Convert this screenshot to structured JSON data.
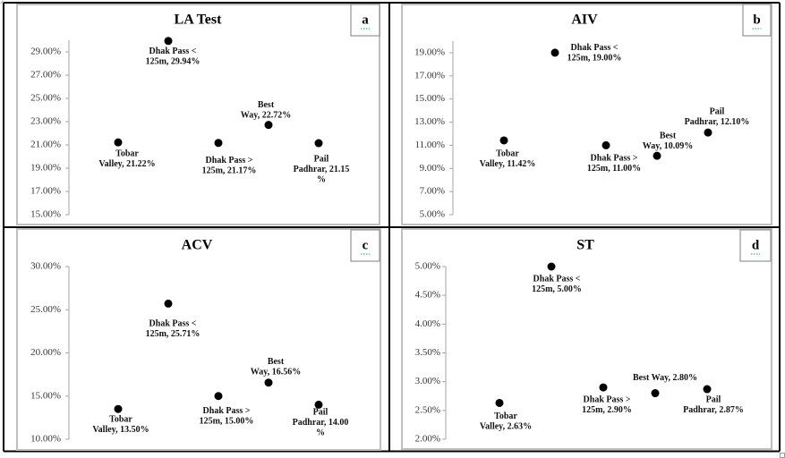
{
  "colors": {
    "marker": "#000000",
    "chart_frame": "#bfbfbf",
    "axis": "#a6a6a6",
    "table_border": "#000000",
    "label_box_border": "#7f7f7f",
    "label_underline": "#00b050"
  },
  "chart_data": [
    {
      "type": "scatter",
      "panel_label": "a",
      "title": "LA Test",
      "xlabel": "",
      "ylabel": "",
      "xlim": [
        0,
        6
      ],
      "ylim": [
        15,
        30
      ],
      "grid": false,
      "legend": "none",
      "yticks": [
        15,
        17,
        19,
        21,
        23,
        25,
        27,
        29
      ],
      "ytick_labels": [
        "15.00%",
        "17.00%",
        "19.00%",
        "21.00%",
        "23.00%",
        "25.00%",
        "27.00%",
        "29.00%"
      ],
      "points": [
        {
          "x": 1,
          "y": 21.22,
          "label_lines": [
            "Tobar",
            "Valley, 21.22%"
          ]
        },
        {
          "x": 2,
          "y": 29.94,
          "label_lines": [
            "Dhak Pass <",
            "125m, 29.94%"
          ]
        },
        {
          "x": 3,
          "y": 21.17,
          "label_lines": [
            "Dhak Pass >",
            "125m, 21.17%"
          ]
        },
        {
          "x": 4,
          "y": 22.72,
          "label_lines": [
            "Best",
            "Way, 22.72%"
          ]
        },
        {
          "x": 5,
          "y": 21.15,
          "label_lines": [
            "Pail",
            "Padhrar, 21.15",
            "%"
          ]
        }
      ]
    },
    {
      "type": "scatter",
      "panel_label": "b",
      "title": "AIV",
      "xlabel": "",
      "ylabel": "",
      "xlim": [
        0,
        6
      ],
      "ylim": [
        5,
        20
      ],
      "grid": false,
      "legend": "none",
      "yticks": [
        5,
        7,
        9,
        11,
        13,
        15,
        17,
        19
      ],
      "ytick_labels": [
        "5.00%",
        "7.00%",
        "9.00%",
        "11.00%",
        "13.00%",
        "15.00%",
        "17.00%",
        "19.00%"
      ],
      "points": [
        {
          "x": 1,
          "y": 11.42,
          "label_lines": [
            "Tobar",
            "Valley, 11.42%"
          ]
        },
        {
          "x": 2,
          "y": 19.0,
          "label_lines": [
            "Dhak Pass <",
            "125m, 19.00%"
          ]
        },
        {
          "x": 3,
          "y": 11.0,
          "label_lines": [
            "Dhak Pass >",
            "125m, 11.00%"
          ]
        },
        {
          "x": 4,
          "y": 10.09,
          "label_lines": [
            "Best",
            "Way, 10.09%"
          ]
        },
        {
          "x": 5,
          "y": 12.1,
          "label_lines": [
            "Pail",
            "Padhrar, 12.10%"
          ]
        }
      ]
    },
    {
      "type": "scatter",
      "panel_label": "c",
      "title": "ACV",
      "xlabel": "",
      "ylabel": "",
      "xlim": [
        0,
        6
      ],
      "ylim": [
        10,
        30
      ],
      "grid": false,
      "legend": "none",
      "yticks": [
        10,
        15,
        20,
        25,
        30
      ],
      "ytick_labels": [
        "10.00%",
        "15.00%",
        "20.00%",
        "25.00%",
        "30.00%"
      ],
      "points": [
        {
          "x": 1,
          "y": 13.5,
          "label_lines": [
            "Tobar",
            "Valley, 13.50%"
          ]
        },
        {
          "x": 2,
          "y": 25.71,
          "label_lines": [
            "Dhak Pass <",
            "125m, 25.71%"
          ]
        },
        {
          "x": 3,
          "y": 15.0,
          "label_lines": [
            "Dhak Pass >",
            "125m, 15.00%"
          ]
        },
        {
          "x": 4,
          "y": 16.56,
          "label_lines": [
            "Best",
            "Way, 16.56%"
          ]
        },
        {
          "x": 5,
          "y": 14.0,
          "label_lines": [
            "Pail",
            "Padhrar, 14.00",
            "%"
          ]
        }
      ]
    },
    {
      "type": "scatter",
      "panel_label": "d",
      "title": "ST",
      "xlabel": "",
      "ylabel": "",
      "xlim": [
        0,
        6
      ],
      "ylim": [
        2,
        5
      ],
      "grid": false,
      "legend": "none",
      "yticks": [
        2,
        2.5,
        3,
        3.5,
        4,
        4.5,
        5
      ],
      "ytick_labels": [
        "2.00%",
        "2.50%",
        "3.00%",
        "3.50%",
        "4.00%",
        "4.50%",
        "5.00%"
      ],
      "points": [
        {
          "x": 1,
          "y": 2.63,
          "label_lines": [
            "Tobar",
            "Valley, 2.63%"
          ]
        },
        {
          "x": 2,
          "y": 5.0,
          "label_lines": [
            "Dhak Pass <",
            "125m, 5.00%"
          ]
        },
        {
          "x": 3,
          "y": 2.9,
          "label_lines": [
            "Dhak Pass >",
            "125m, 2.90%"
          ]
        },
        {
          "x": 4,
          "y": 2.8,
          "label_lines": [
            "Best Way, 2.80%"
          ]
        },
        {
          "x": 5,
          "y": 2.87,
          "label_lines": [
            "Pail",
            "Padhrar, 2.87%"
          ]
        }
      ]
    }
  ]
}
